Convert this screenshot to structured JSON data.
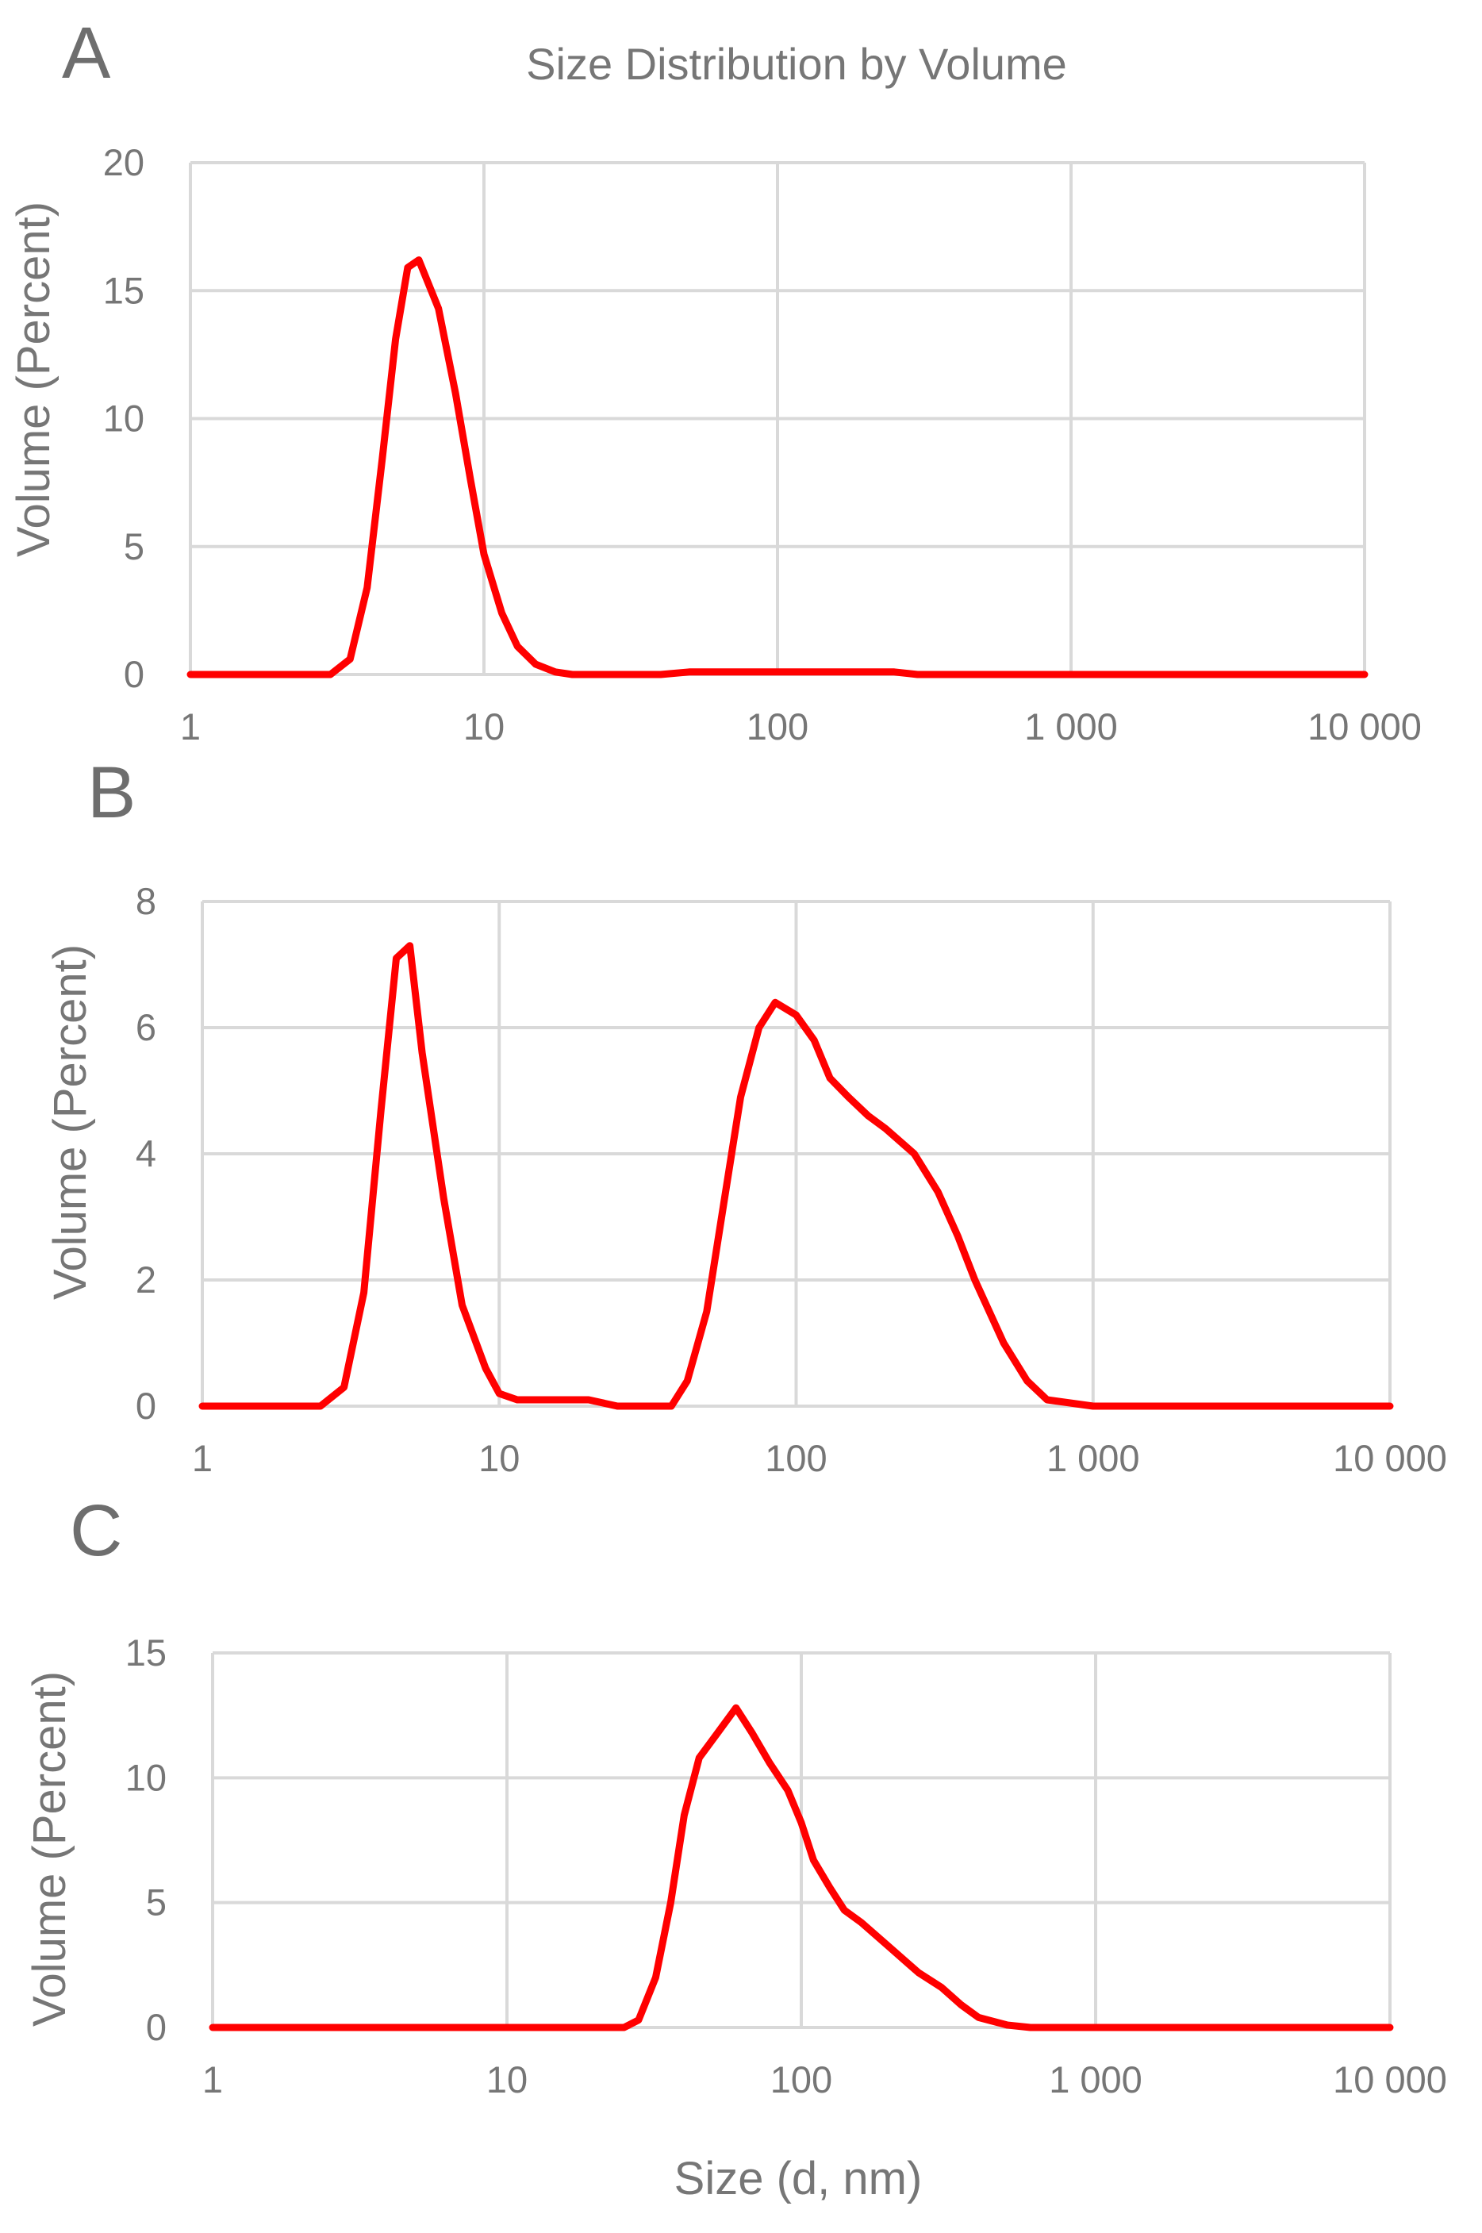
{
  "figure": {
    "title": "Size Distribution by Volume",
    "xlabel": "Size (d, nm)"
  },
  "chart_data": [
    {
      "panel": "A",
      "type": "line",
      "title": "Size Distribution by Volume",
      "xlabel": "",
      "ylabel": "Volume (Percent)",
      "xscale": "log",
      "xlim": [
        1,
        10000
      ],
      "ylim": [
        0,
        20
      ],
      "xticks": [
        "1",
        "10",
        "100",
        "1 000",
        "10 000"
      ],
      "yticks": [
        "0",
        "5",
        "10",
        "15",
        "20"
      ],
      "grid": true,
      "color": "#ff0000",
      "x": [
        1,
        3,
        3.5,
        4,
        4.5,
        5,
        5.5,
        6,
        7,
        8,
        9,
        10,
        11.5,
        13,
        15,
        17.5,
        20,
        23,
        26,
        30,
        40,
        50,
        60,
        80,
        100,
        150,
        200,
        250,
        300,
        500,
        1000,
        2000,
        5000,
        10000
      ],
      "y": [
        0,
        0,
        0.6,
        3.4,
        8.4,
        13.1,
        15.9,
        16.2,
        14.3,
        11.0,
        7.6,
        4.7,
        2.4,
        1.1,
        0.4,
        0.1,
        0,
        0,
        0,
        0,
        0,
        0.1,
        0.1,
        0.1,
        0.1,
        0.1,
        0.1,
        0.1,
        0,
        0,
        0,
        0,
        0,
        0
      ]
    },
    {
      "panel": "B",
      "type": "line",
      "title": "",
      "xlabel": "",
      "ylabel": "Volume (Percent)",
      "xscale": "log",
      "xlim": [
        1,
        10000
      ],
      "ylim": [
        0,
        8
      ],
      "xticks": [
        "1",
        "10",
        "100",
        "1 000",
        "10 000"
      ],
      "yticks": [
        "0",
        "2",
        "4",
        "6",
        "8"
      ],
      "grid": true,
      "color": "#ff0000",
      "x": [
        1,
        2.5,
        3,
        3.5,
        4,
        4.5,
        5,
        5.5,
        6.5,
        7.5,
        9,
        10,
        11.5,
        13,
        15,
        20,
        25,
        28,
        30,
        38,
        43,
        50,
        57,
        65,
        75,
        85,
        100,
        115,
        130,
        150,
        175,
        200,
        250,
        300,
        350,
        400,
        500,
        600,
        700,
        1000,
        2000,
        5000,
        10000
      ],
      "y": [
        0,
        0,
        0.3,
        1.8,
        4.7,
        7.1,
        7.3,
        5.6,
        3.3,
        1.6,
        0.6,
        0.2,
        0.1,
        0.1,
        0.1,
        0.1,
        0,
        0,
        0,
        0,
        0.4,
        1.5,
        3.2,
        4.9,
        6.0,
        6.4,
        6.2,
        5.8,
        5.2,
        4.9,
        4.6,
        4.4,
        4.0,
        3.4,
        2.7,
        2.0,
        1.0,
        0.4,
        0.1,
        0,
        0,
        0,
        0
      ]
    },
    {
      "panel": "C",
      "type": "line",
      "title": "",
      "xlabel": "Size (d, nm)",
      "ylabel": "Volume (Percent)",
      "xscale": "log",
      "xlim": [
        1,
        10000
      ],
      "ylim": [
        0,
        15
      ],
      "xticks": [
        "1",
        "10",
        "100",
        "1 000",
        "10 000"
      ],
      "yticks": [
        "0",
        "5",
        "10",
        "15"
      ],
      "grid": true,
      "color": "#ff0000",
      "x": [
        1,
        10,
        25,
        28,
        32,
        36,
        40,
        45,
        52,
        60,
        68,
        78,
        90,
        100,
        110,
        125,
        140,
        160,
        200,
        250,
        300,
        350,
        400,
        500,
        600,
        800,
        1000,
        2000,
        5000,
        10000
      ],
      "y": [
        0,
        0,
        0,
        0.3,
        2.0,
        5.0,
        8.5,
        10.8,
        11.8,
        12.8,
        11.8,
        10.6,
        9.5,
        8.2,
        6.7,
        5.6,
        4.7,
        4.2,
        3.2,
        2.2,
        1.6,
        0.9,
        0.4,
        0.1,
        0,
        0,
        0,
        0,
        0,
        0
      ]
    }
  ]
}
